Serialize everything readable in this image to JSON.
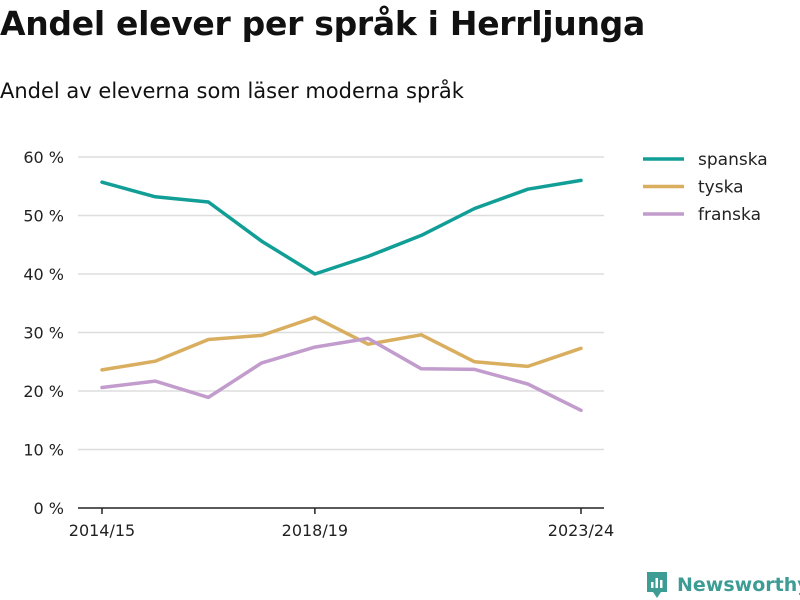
{
  "title": "Andel elever per språk i Herrljunga",
  "subtitle": "Andel av eleverna som läser moderna språk",
  "brand": "Newsworthy",
  "chart_data": {
    "type": "line",
    "title": "Andel elever per språk i Herrljunga",
    "subtitle": "Andel av eleverna som läser moderna språk",
    "xlabel": "",
    "ylabel": "",
    "x": [
      "2014/15",
      "2015/16",
      "2016/17",
      "2017/18",
      "2018/19",
      "2019/20",
      "2020/21",
      "2021/22",
      "2022/23",
      "2023/24"
    ],
    "x_tick_labels": [
      "2014/15",
      "2018/19",
      "2023/24"
    ],
    "x_tick_indices": [
      0,
      4,
      9
    ],
    "ylim": [
      0,
      60
    ],
    "y_ticks": [
      0,
      10,
      20,
      30,
      40,
      50,
      60
    ],
    "y_tick_labels": [
      "0 %",
      "10 %",
      "20 %",
      "30 %",
      "40 %",
      "50 %",
      "60 %"
    ],
    "grid": true,
    "legend_position": "top-right",
    "series": [
      {
        "name": "spanska",
        "color": "#119e96",
        "values": [
          55.7,
          53.2,
          52.3,
          45.6,
          40.0,
          43.0,
          46.6,
          51.2,
          54.5,
          56.0
        ]
      },
      {
        "name": "tyska",
        "color": "#d9ae5f",
        "values": [
          23.6,
          25.1,
          28.8,
          29.5,
          32.6,
          28.0,
          29.6,
          25.0,
          24.2,
          27.3
        ]
      },
      {
        "name": "franska",
        "color": "#c29ccc",
        "values": [
          20.6,
          21.7,
          18.9,
          24.8,
          27.5,
          29.0,
          23.8,
          23.7,
          21.2,
          16.7
        ]
      }
    ]
  }
}
